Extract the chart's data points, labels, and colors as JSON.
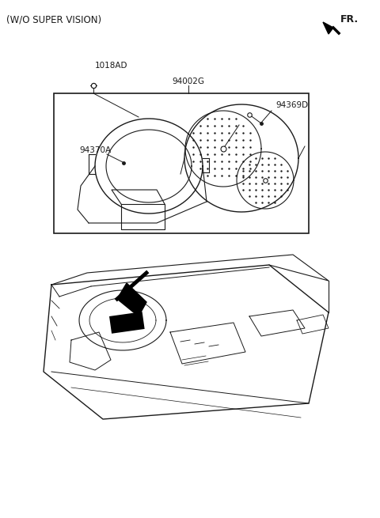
{
  "title": "(W/O SUPER VISION)",
  "fr_label": "FR.",
  "bg_color": "#ffffff",
  "line_color": "#1a1a1a",
  "label_1018AD": "1018AD",
  "label_94002G": "94002G",
  "label_94370A": "94370A",
  "label_94369D": "94369D",
  "fig_width": 4.8,
  "fig_height": 6.55,
  "dpi": 100
}
